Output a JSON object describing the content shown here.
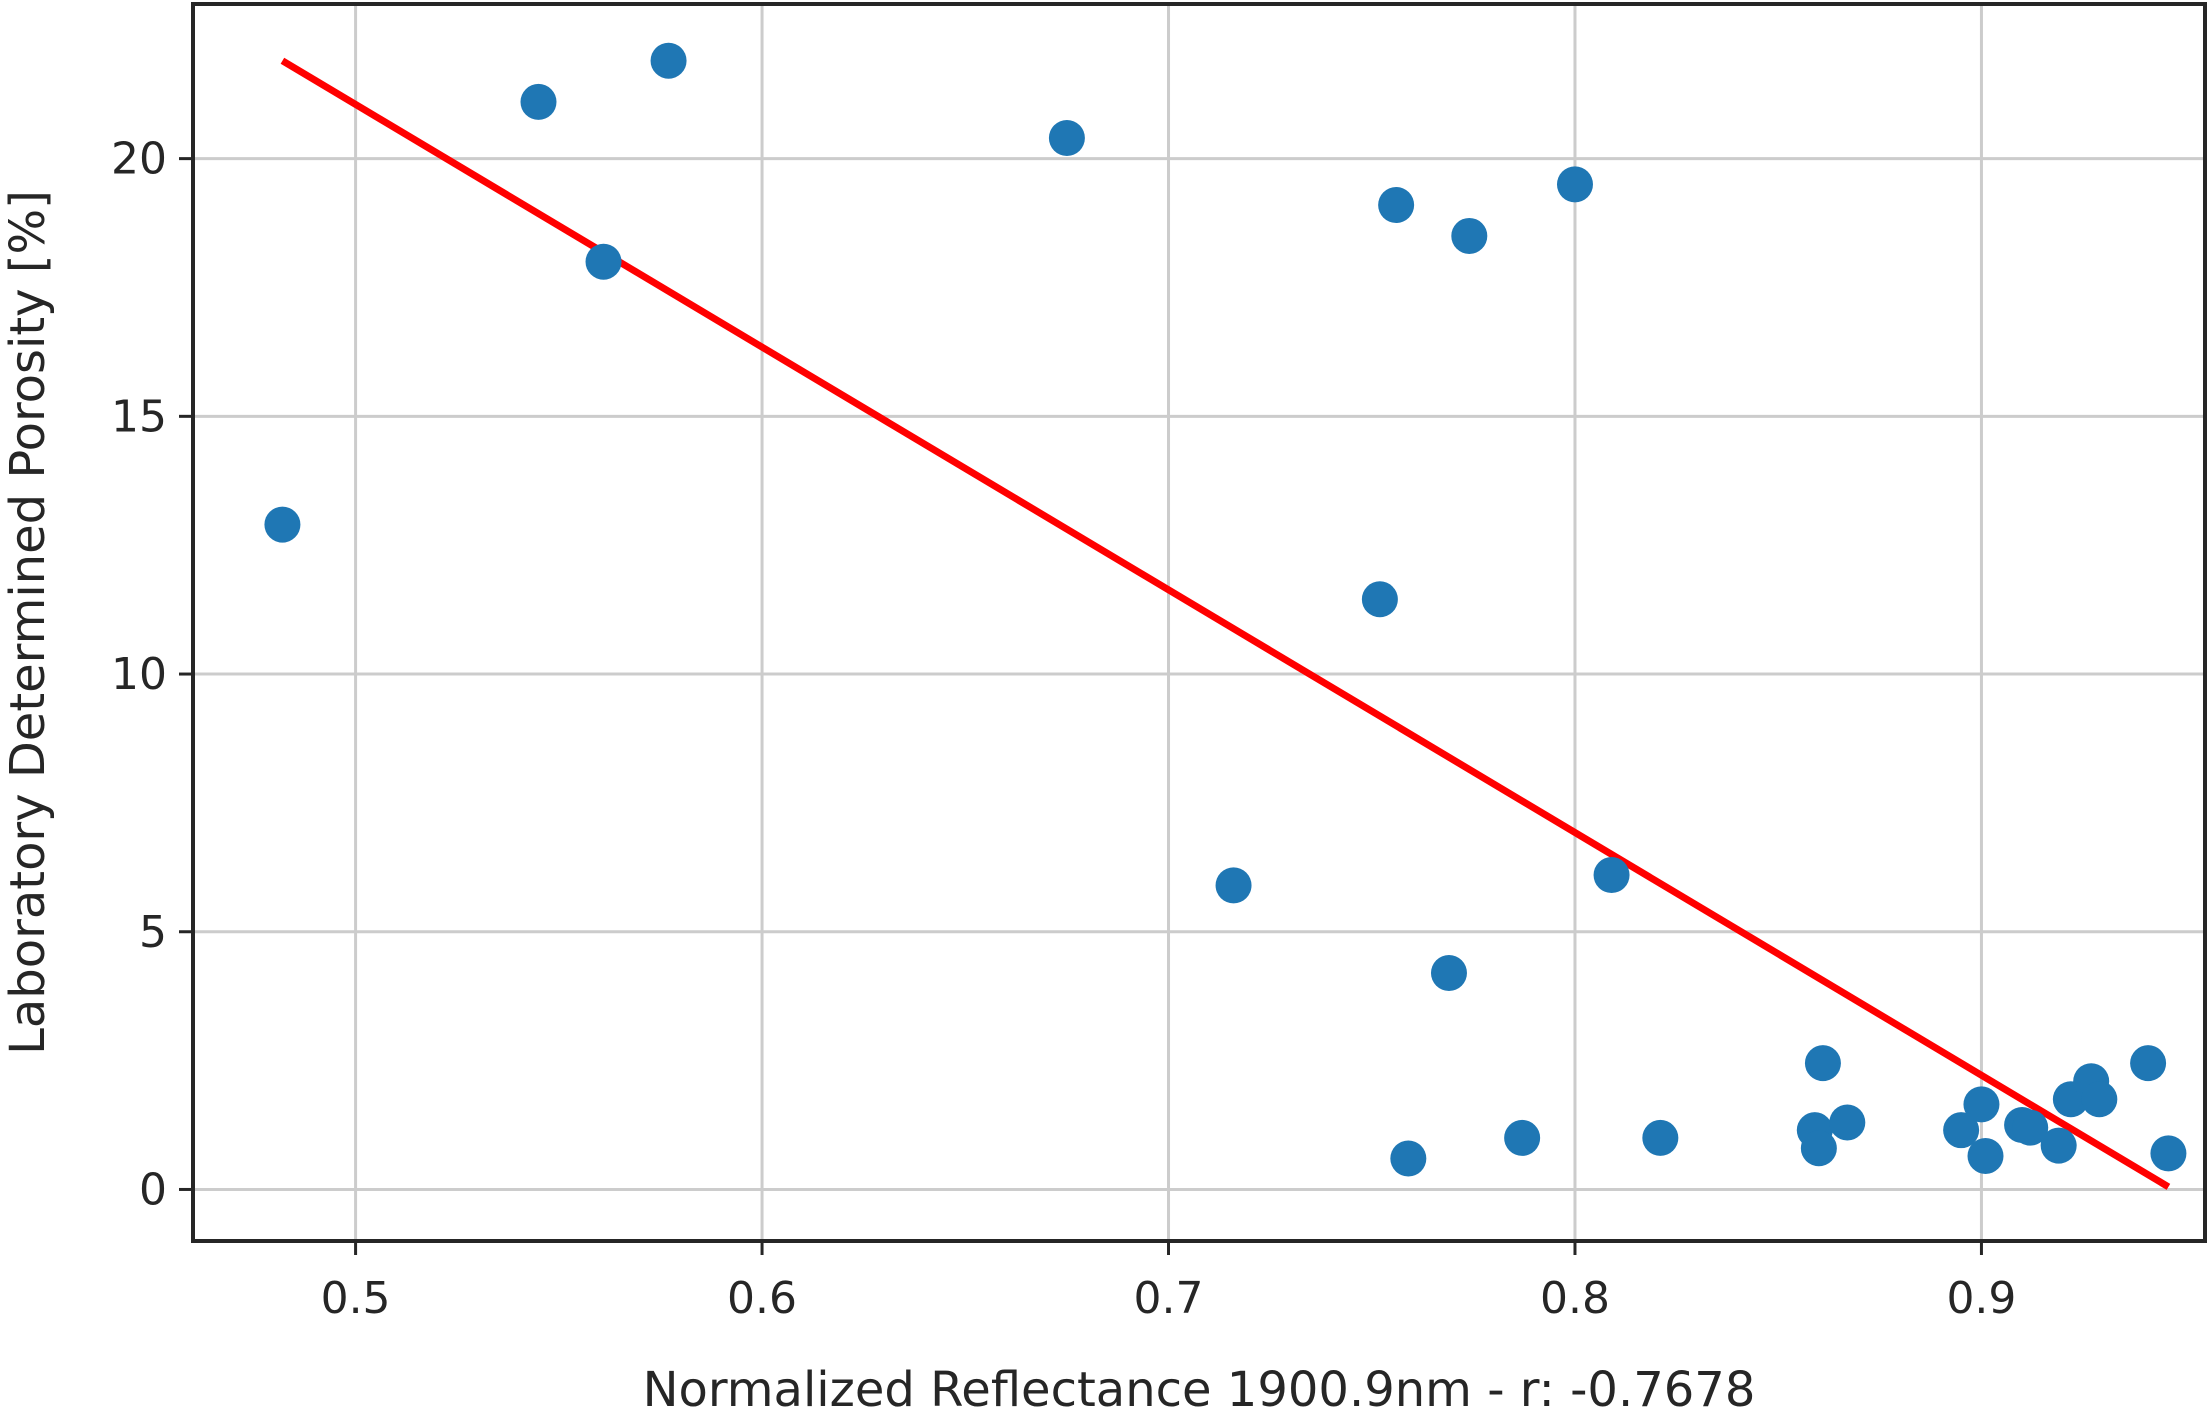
{
  "chart_data": {
    "type": "scatter",
    "title": "",
    "xlabel": "Normalized Reflectance 1900.9nm - r:  -0.7678",
    "ylabel": "Laboratory Determined Porosity [%]",
    "xlim": [
      0.46,
      0.955
    ],
    "ylim": [
      -1.0,
      23.0
    ],
    "xticks": [
      0.5,
      0.6,
      0.7,
      0.8,
      0.9
    ],
    "xtick_labels": [
      "0.5",
      "0.6",
      "0.7",
      "0.8",
      "0.9"
    ],
    "yticks": [
      0,
      5,
      10,
      15,
      20
    ],
    "ytick_labels": [
      "0",
      "5",
      "10",
      "15",
      "20"
    ],
    "grid": true,
    "legend": "none",
    "point_color": "#1f77b4",
    "fit_line_color": "#ff0000",
    "points": [
      {
        "x": 0.482,
        "y": 12.9
      },
      {
        "x": 0.545,
        "y": 21.1
      },
      {
        "x": 0.561,
        "y": 18.0
      },
      {
        "x": 0.577,
        "y": 21.9
      },
      {
        "x": 0.675,
        "y": 20.4
      },
      {
        "x": 0.716,
        "y": 5.9
      },
      {
        "x": 0.752,
        "y": 11.45
      },
      {
        "x": 0.756,
        "y": 19.1
      },
      {
        "x": 0.759,
        "y": 0.6
      },
      {
        "x": 0.769,
        "y": 4.2
      },
      {
        "x": 0.774,
        "y": 18.5
      },
      {
        "x": 0.787,
        "y": 1.0
      },
      {
        "x": 0.8,
        "y": 19.5
      },
      {
        "x": 0.809,
        "y": 6.1
      },
      {
        "x": 0.821,
        "y": 1.0
      },
      {
        "x": 0.859,
        "y": 1.15
      },
      {
        "x": 0.86,
        "y": 0.8
      },
      {
        "x": 0.861,
        "y": 2.45
      },
      {
        "x": 0.867,
        "y": 1.3
      },
      {
        "x": 0.895,
        "y": 1.15
      },
      {
        "x": 0.9,
        "y": 1.65
      },
      {
        "x": 0.901,
        "y": 0.65
      },
      {
        "x": 0.91,
        "y": 1.25
      },
      {
        "x": 0.912,
        "y": 1.2
      },
      {
        "x": 0.919,
        "y": 0.85
      },
      {
        "x": 0.922,
        "y": 1.75
      },
      {
        "x": 0.927,
        "y": 2.1
      },
      {
        "x": 0.929,
        "y": 1.75
      },
      {
        "x": 0.941,
        "y": 2.45
      },
      {
        "x": 0.946,
        "y": 0.7
      }
    ],
    "fit_line": {
      "x": [
        0.482,
        0.946
      ],
      "y": [
        21.9,
        0.05
      ]
    }
  }
}
